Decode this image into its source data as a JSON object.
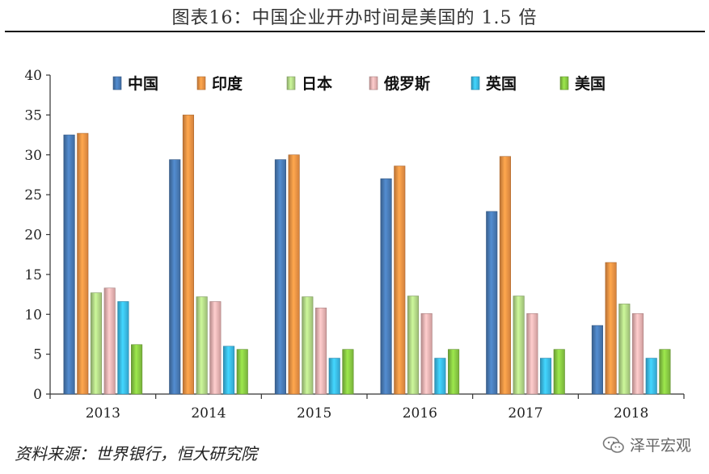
{
  "figure_title": "图表16：中国企业开办时间是美国的 1.5 倍",
  "source_note": "资料来源：世界银行，恒大研究院",
  "watermark": {
    "text": "泽平宏观",
    "icon": "wechat-icon"
  },
  "chart_data": {
    "type": "bar",
    "title": "",
    "xlabel": "",
    "ylabel": "",
    "categories": [
      "2013",
      "2014",
      "2015",
      "2016",
      "2017",
      "2018"
    ],
    "ylim": [
      0,
      40
    ],
    "yticks": [
      0,
      5,
      10,
      15,
      20,
      25,
      30,
      35,
      40
    ],
    "legend_position": "top",
    "grid": false,
    "series": [
      {
        "name": "中国",
        "color": "#4a7ebb",
        "values": [
          32.5,
          29.4,
          29.4,
          27.0,
          22.9,
          8.6
        ]
      },
      {
        "name": "印度",
        "color": "#f79646",
        "values": [
          32.7,
          35.0,
          30.0,
          28.6,
          29.8,
          16.5
        ]
      },
      {
        "name": "日本",
        "color": "#b7dd8a",
        "values": [
          12.7,
          12.2,
          12.2,
          12.3,
          12.3,
          11.3
        ]
      },
      {
        "name": "俄罗斯",
        "color": "#f2b8b8",
        "values": [
          13.3,
          11.6,
          10.8,
          10.1,
          10.1,
          10.1
        ]
      },
      {
        "name": "英国",
        "color": "#3cc0f0",
        "values": [
          11.6,
          6.0,
          4.5,
          4.5,
          4.5,
          4.5
        ]
      },
      {
        "name": "美国",
        "color": "#8ccf45",
        "values": [
          6.2,
          5.6,
          5.6,
          5.6,
          5.6,
          5.6
        ]
      }
    ]
  }
}
